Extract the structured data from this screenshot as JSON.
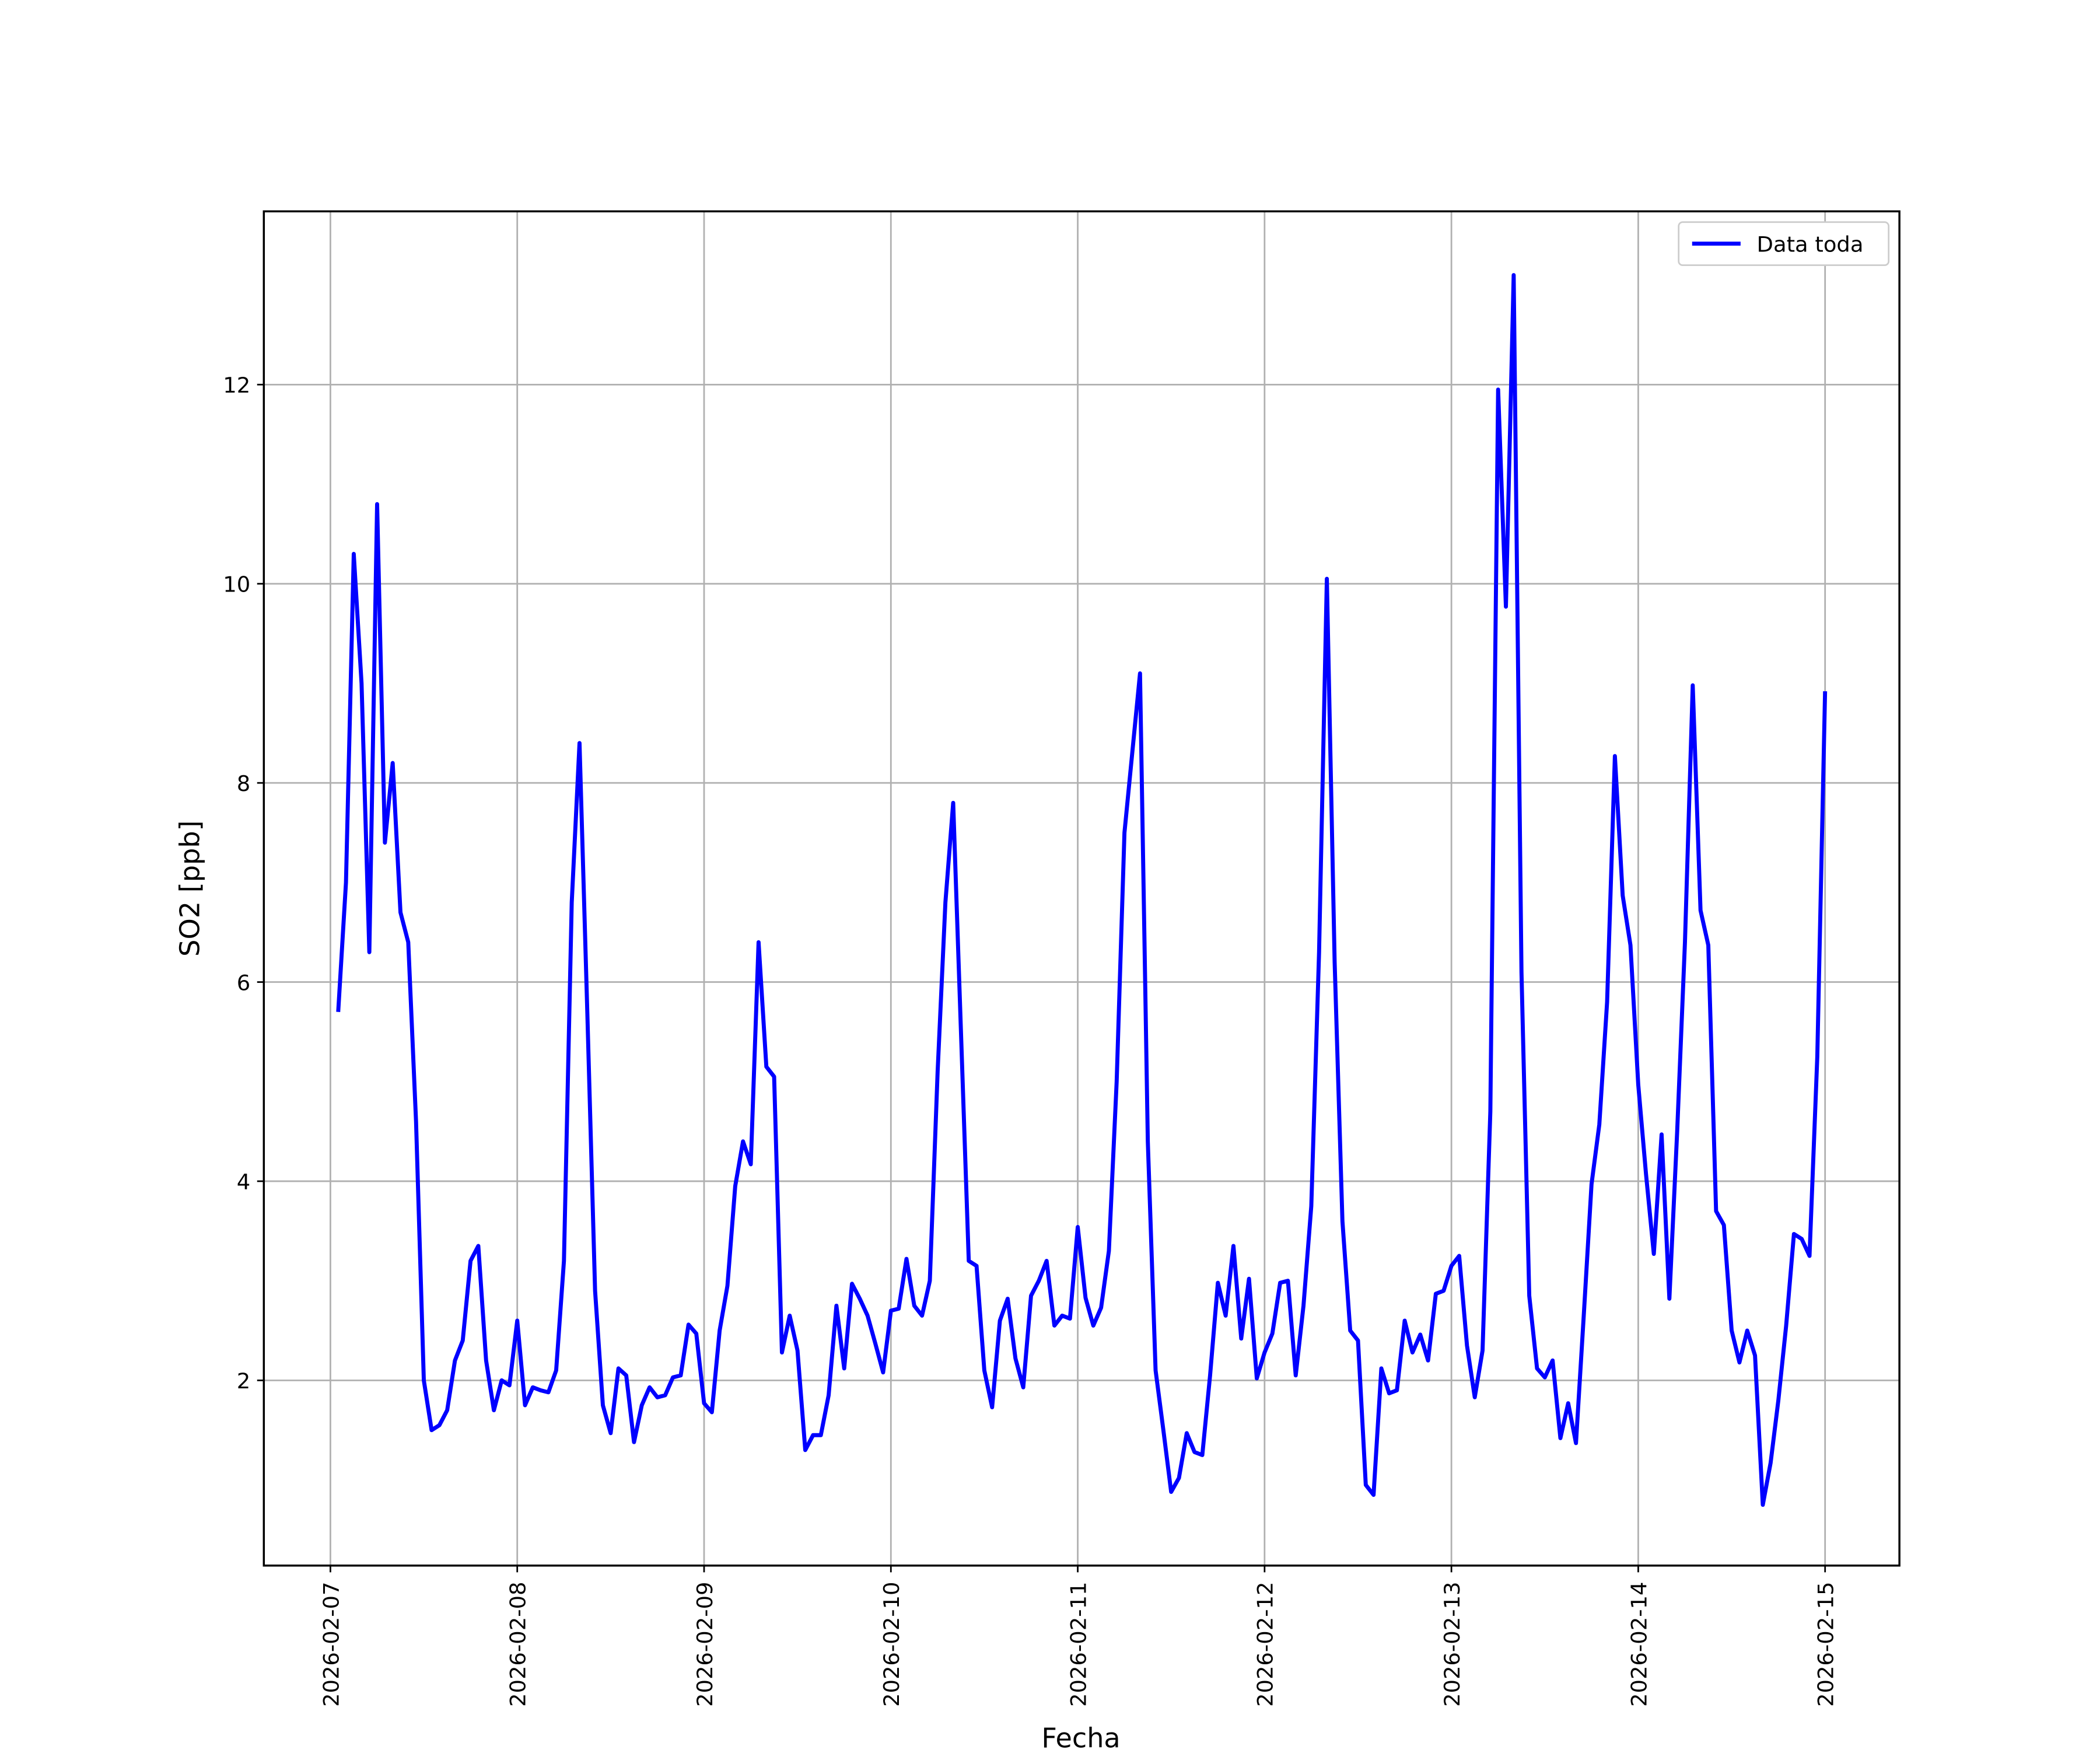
{
  "chart_data": {
    "type": "line",
    "xlabel": "Fecha",
    "ylabel": "SO2 [ppb]",
    "x": [
      "2026-02-07T01:00",
      "2026-02-07T02:00",
      "2026-02-07T03:00",
      "2026-02-07T04:00",
      "2026-02-07T05:00",
      "2026-02-07T06:00",
      "2026-02-07T07:00",
      "2026-02-07T08:00",
      "2026-02-07T09:00",
      "2026-02-07T10:00",
      "2026-02-07T11:00",
      "2026-02-07T12:00",
      "2026-02-07T13:00",
      "2026-02-07T14:00",
      "2026-02-07T15:00",
      "2026-02-07T16:00",
      "2026-02-07T17:00",
      "2026-02-07T18:00",
      "2026-02-07T19:00",
      "2026-02-07T20:00",
      "2026-02-07T21:00",
      "2026-02-07T22:00",
      "2026-02-07T23:00",
      "2026-02-08T00:00",
      "2026-02-08T01:00",
      "2026-02-08T02:00",
      "2026-02-08T03:00",
      "2026-02-08T04:00",
      "2026-02-08T05:00",
      "2026-02-08T06:00",
      "2026-02-08T07:00",
      "2026-02-08T08:00",
      "2026-02-08T09:00",
      "2026-02-08T10:00",
      "2026-02-08T11:00",
      "2026-02-08T12:00",
      "2026-02-08T13:00",
      "2026-02-08T14:00",
      "2026-02-08T15:00",
      "2026-02-08T16:00",
      "2026-02-08T17:00",
      "2026-02-08T18:00",
      "2026-02-08T19:00",
      "2026-02-08T20:00",
      "2026-02-08T21:00",
      "2026-02-08T22:00",
      "2026-02-08T23:00",
      "2026-02-09T00:00",
      "2026-02-09T01:00",
      "2026-02-09T02:00",
      "2026-02-09T03:00",
      "2026-02-09T04:00",
      "2026-02-09T05:00",
      "2026-02-09T06:00",
      "2026-02-09T07:00",
      "2026-02-09T08:00",
      "2026-02-09T09:00",
      "2026-02-09T10:00",
      "2026-02-09T11:00",
      "2026-02-09T12:00",
      "2026-02-09T13:00",
      "2026-02-09T14:00",
      "2026-02-09T15:00",
      "2026-02-09T16:00",
      "2026-02-09T17:00",
      "2026-02-09T18:00",
      "2026-02-09T19:00",
      "2026-02-09T20:00",
      "2026-02-09T21:00",
      "2026-02-09T22:00",
      "2026-02-09T23:00",
      "2026-02-10T00:00",
      "2026-02-10T01:00",
      "2026-02-10T02:00",
      "2026-02-10T03:00",
      "2026-02-10T04:00",
      "2026-02-10T05:00",
      "2026-02-10T06:00",
      "2026-02-10T07:00",
      "2026-02-10T08:00",
      "2026-02-10T09:00",
      "2026-02-10T10:00",
      "2026-02-10T11:00",
      "2026-02-10T12:00",
      "2026-02-10T13:00",
      "2026-02-10T14:00",
      "2026-02-10T15:00",
      "2026-02-10T16:00",
      "2026-02-10T17:00",
      "2026-02-10T18:00",
      "2026-02-10T19:00",
      "2026-02-10T20:00",
      "2026-02-10T21:00",
      "2026-02-10T22:00",
      "2026-02-10T23:00",
      "2026-02-11T00:00",
      "2026-02-11T01:00",
      "2026-02-11T02:00",
      "2026-02-11T03:00",
      "2026-02-11T04:00",
      "2026-02-11T05:00",
      "2026-02-11T06:00",
      "2026-02-11T07:00",
      "2026-02-11T08:00",
      "2026-02-11T09:00",
      "2026-02-11T10:00",
      "2026-02-11T11:00",
      "2026-02-11T12:00",
      "2026-02-11T13:00",
      "2026-02-11T14:00",
      "2026-02-11T15:00",
      "2026-02-11T16:00",
      "2026-02-11T17:00",
      "2026-02-11T18:00",
      "2026-02-11T19:00",
      "2026-02-11T20:00",
      "2026-02-11T21:00",
      "2026-02-11T22:00",
      "2026-02-11T23:00",
      "2026-02-12T00:00",
      "2026-02-12T01:00",
      "2026-02-12T02:00",
      "2026-02-12T03:00",
      "2026-02-12T04:00",
      "2026-02-12T05:00",
      "2026-02-12T06:00",
      "2026-02-12T07:00",
      "2026-02-12T08:00",
      "2026-02-12T09:00",
      "2026-02-12T10:00",
      "2026-02-12T11:00",
      "2026-02-12T12:00",
      "2026-02-12T13:00",
      "2026-02-12T14:00",
      "2026-02-12T15:00",
      "2026-02-12T16:00",
      "2026-02-12T17:00",
      "2026-02-12T18:00",
      "2026-02-12T19:00",
      "2026-02-12T20:00",
      "2026-02-12T21:00",
      "2026-02-12T22:00",
      "2026-02-12T23:00",
      "2026-02-13T00:00",
      "2026-02-13T01:00",
      "2026-02-13T02:00",
      "2026-02-13T03:00",
      "2026-02-13T04:00",
      "2026-02-13T05:00",
      "2026-02-13T06:00",
      "2026-02-13T07:00",
      "2026-02-13T08:00",
      "2026-02-13T09:00",
      "2026-02-13T10:00",
      "2026-02-13T11:00",
      "2026-02-13T12:00",
      "2026-02-13T13:00",
      "2026-02-13T14:00",
      "2026-02-13T15:00",
      "2026-02-13T16:00",
      "2026-02-13T17:00",
      "2026-02-13T18:00",
      "2026-02-13T19:00",
      "2026-02-13T20:00",
      "2026-02-13T21:00",
      "2026-02-13T22:00",
      "2026-02-13T23:00",
      "2026-02-14T00:00",
      "2026-02-14T01:00",
      "2026-02-14T02:00",
      "2026-02-14T03:00",
      "2026-02-14T04:00",
      "2026-02-14T05:00",
      "2026-02-14T06:00",
      "2026-02-14T07:00",
      "2026-02-14T08:00",
      "2026-02-14T09:00",
      "2026-02-14T10:00",
      "2026-02-14T11:00",
      "2026-02-14T12:00",
      "2026-02-14T13:00",
      "2026-02-14T14:00",
      "2026-02-14T15:00",
      "2026-02-14T16:00",
      "2026-02-14T17:00",
      "2026-02-14T18:00",
      "2026-02-14T19:00",
      "2026-02-14T20:00",
      "2026-02-14T21:00",
      "2026-02-14T22:00",
      "2026-02-14T23:00",
      "2026-02-15T00:00"
    ],
    "series": [
      {
        "name": "Data toda",
        "color": "#0000ff",
        "values": [
          5.7,
          7.0,
          10.3,
          9.0,
          6.3,
          10.8,
          7.4,
          8.2,
          6.7,
          6.4,
          4.6,
          2.0,
          1.5,
          1.55,
          1.7,
          2.2,
          2.4,
          3.2,
          3.35,
          2.2,
          1.7,
          2.0,
          1.95,
          2.6,
          1.75,
          1.93,
          1.9,
          1.88,
          2.1,
          3.2,
          6.8,
          8.4,
          5.7,
          2.9,
          1.75,
          1.47,
          2.12,
          2.05,
          1.38,
          1.75,
          1.93,
          1.83,
          1.85,
          2.03,
          2.05,
          2.56,
          2.47,
          1.77,
          1.68,
          2.5,
          2.95,
          3.95,
          4.4,
          4.17,
          6.4,
          5.15,
          5.05,
          2.28,
          2.65,
          2.3,
          1.3,
          1.45,
          1.45,
          1.85,
          2.75,
          2.12,
          2.97,
          2.82,
          2.65,
          2.37,
          2.08,
          2.7,
          2.72,
          3.22,
          2.75,
          2.65,
          3.0,
          5.1,
          6.8,
          7.8,
          5.5,
          3.2,
          3.15,
          2.1,
          1.73,
          2.6,
          2.82,
          2.22,
          1.93,
          2.85,
          3.0,
          3.2,
          2.55,
          2.65,
          2.62,
          3.54,
          2.83,
          2.55,
          2.73,
          3.3,
          5.0,
          7.5,
          8.3,
          9.1,
          4.4,
          2.1,
          1.5,
          0.88,
          1.02,
          1.47,
          1.28,
          1.25,
          2.05,
          2.98,
          2.65,
          3.35,
          2.42,
          3.02,
          2.02,
          2.28,
          2.47,
          2.98,
          3.0,
          2.05,
          2.75,
          3.75,
          6.3,
          10.05,
          6.2,
          3.6,
          2.5,
          2.4,
          0.95,
          0.85,
          2.12,
          1.87,
          1.9,
          2.6,
          2.28,
          2.46,
          2.2,
          2.87,
          2.9,
          3.15,
          3.25,
          2.35,
          1.83,
          2.3,
          4.7,
          11.95,
          9.77,
          13.1,
          6.1,
          2.85,
          2.12,
          2.03,
          2.2,
          1.42,
          1.77,
          1.37,
          2.65,
          3.97,
          4.57,
          5.8,
          8.27,
          6.87,
          6.37,
          4.97,
          4.07,
          3.27,
          4.47,
          2.82,
          4.5,
          6.4,
          8.98,
          6.72,
          6.37,
          3.7,
          3.56,
          2.5,
          2.18,
          2.5,
          2.25,
          0.75,
          1.17,
          1.8,
          2.55,
          3.47,
          3.42,
          3.25,
          5.25,
          8.92
        ]
      }
    ],
    "xlim": [
      "2026-02-06T15:27",
      "2026-02-15T09:33"
    ],
    "xticks": [
      "2026-02-07",
      "2026-02-08",
      "2026-02-09",
      "2026-02-10",
      "2026-02-11",
      "2026-02-12",
      "2026-02-13",
      "2026-02-14",
      "2026-02-15"
    ],
    "ylim": [
      0.14,
      13.74
    ],
    "yticks": [
      2,
      4,
      6,
      8,
      10,
      12
    ],
    "grid": true,
    "legend": "upper right"
  }
}
